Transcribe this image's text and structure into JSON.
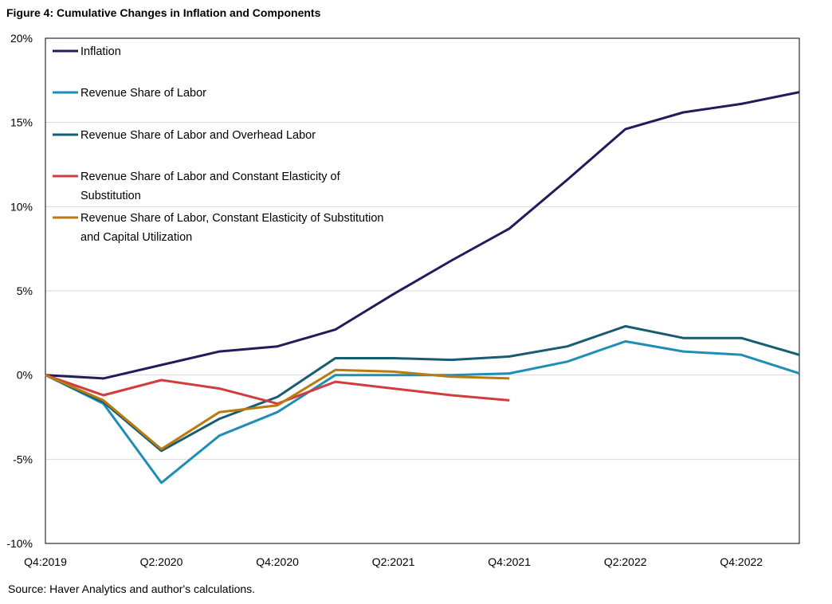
{
  "figure_title": "Figure 4: Cumulative Changes in Inflation and Components",
  "source_note": "Source: Haver Analytics and author's calculations.",
  "chart_data": {
    "type": "line",
    "title": "Figure 4: Cumulative Changes in Inflation and Components",
    "xlabel": "",
    "ylabel": "",
    "categories": [
      "Q4:2019",
      "Q1:2020",
      "Q2:2020",
      "Q3:2020",
      "Q4:2020",
      "Q1:2021",
      "Q2:2021",
      "Q3:2021",
      "Q4:2021",
      "Q1:2022",
      "Q2:2022",
      "Q3:2022",
      "Q4:2022",
      "Q1:2023"
    ],
    "x_tick_labels": [
      "Q4:2019",
      "Q2:2020",
      "Q4:2020",
      "Q2:2021",
      "Q4:2021",
      "Q2:2022",
      "Q4:2022"
    ],
    "ylim": [
      -10,
      20
    ],
    "y_ticks": [
      -10,
      -5,
      0,
      5,
      10,
      15,
      20
    ],
    "y_tick_labels": [
      "-10%",
      "-5%",
      "0%",
      "5%",
      "10%",
      "15%",
      "20%"
    ],
    "grid": "horizontal",
    "legend_position": "top-left",
    "series": [
      {
        "name": "Inflation",
        "color": "#221C5C",
        "values": [
          0.0,
          -0.2,
          0.6,
          1.4,
          1.7,
          2.7,
          4.8,
          6.8,
          8.7,
          11.6,
          14.6,
          15.6,
          16.1,
          16.8
        ]
      },
      {
        "name": "Revenue Share of Labor",
        "color": "#1F8EB5",
        "values": [
          0.0,
          -1.7,
          -6.4,
          -3.6,
          -2.2,
          0.0,
          0.0,
          0.0,
          0.1,
          0.8,
          2.0,
          1.4,
          1.2,
          0.1
        ]
      },
      {
        "name": "Revenue Share of Labor and Overhead Labor",
        "color": "#175C72",
        "values": [
          0.0,
          -1.6,
          -4.5,
          -2.6,
          -1.3,
          1.0,
          1.0,
          0.9,
          1.1,
          1.7,
          2.9,
          2.2,
          2.2,
          1.2
        ]
      },
      {
        "name_lines": [
          "Revenue Share of Labor and Constant Elasticity of",
          "Substitution"
        ],
        "name": "Revenue Share of Labor and Constant Elasticity of Substitution",
        "color": "#D23C3C",
        "values": [
          0.0,
          -1.2,
          -0.3,
          -0.8,
          -1.7,
          -0.4,
          -0.8,
          -1.2,
          -1.5,
          null,
          null,
          null,
          null,
          null
        ]
      },
      {
        "name_lines": [
          "Revenue Share of Labor, Constant Elasticity of Substitution",
          "and Capital Utilization"
        ],
        "name": "Revenue Share of Labor, Constant Elasticity of Substitution and Capital Utilization",
        "color": "#B97A10",
        "values": [
          0.0,
          -1.5,
          -4.4,
          -2.2,
          -1.8,
          0.3,
          0.2,
          -0.1,
          -0.2,
          null,
          null,
          null,
          null,
          null
        ]
      }
    ]
  }
}
